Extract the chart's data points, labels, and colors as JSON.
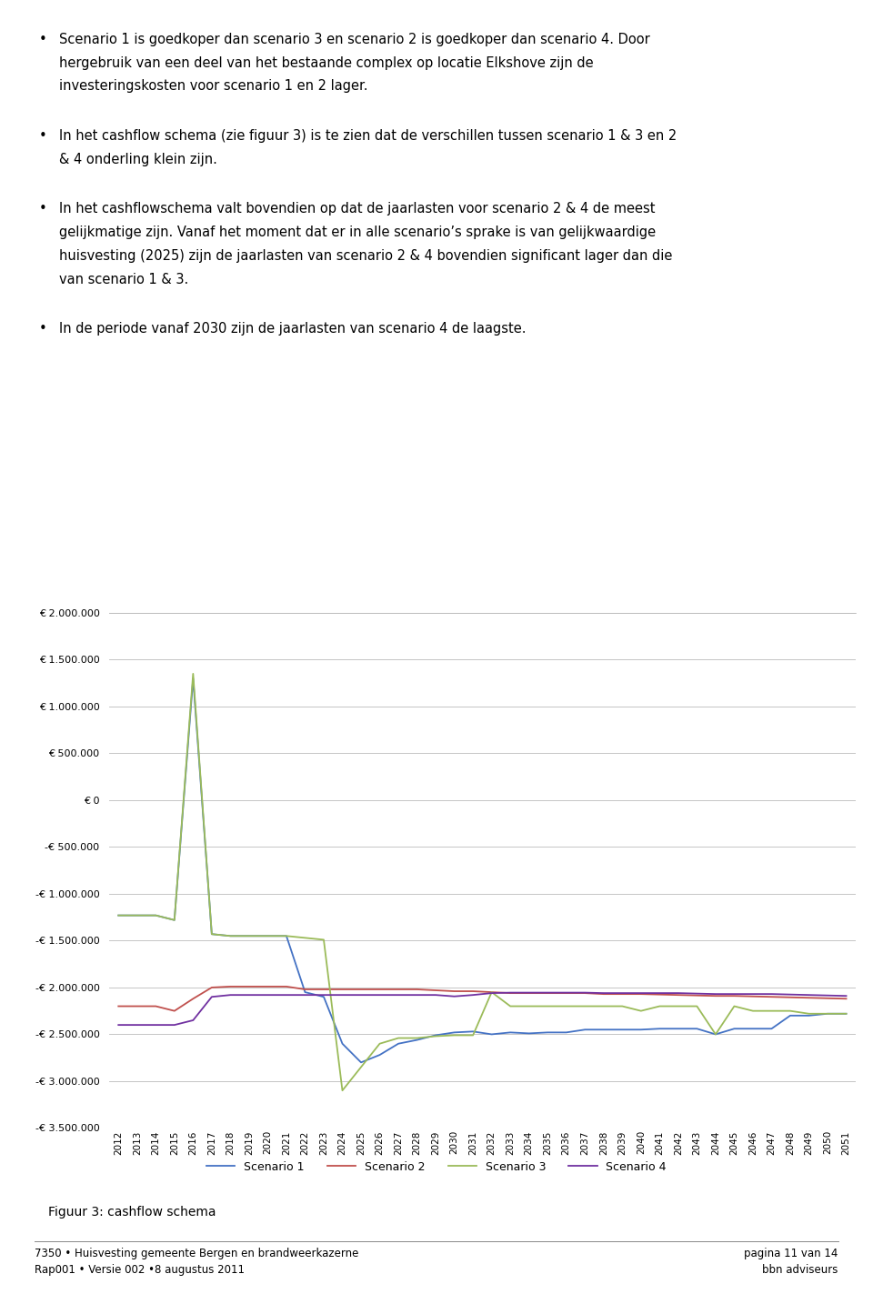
{
  "years": [
    2012,
    2013,
    2014,
    2015,
    2016,
    2017,
    2018,
    2019,
    2020,
    2021,
    2022,
    2023,
    2024,
    2025,
    2026,
    2027,
    2028,
    2029,
    2030,
    2031,
    2032,
    2033,
    2034,
    2035,
    2036,
    2037,
    2038,
    2039,
    2040,
    2041,
    2042,
    2043,
    2044,
    2045,
    2046,
    2047,
    2048,
    2049,
    2050,
    2051
  ],
  "scenario1": [
    -1230000,
    -1230000,
    -1230000,
    -1280000,
    1300000,
    -1430000,
    -1450000,
    -1450000,
    -1450000,
    -1450000,
    -2050000,
    -2100000,
    -2600000,
    -2800000,
    -2720000,
    -2600000,
    -2560000,
    -2510000,
    -2480000,
    -2470000,
    -2500000,
    -2480000,
    -2490000,
    -2480000,
    -2480000,
    -2450000,
    -2450000,
    -2450000,
    -2450000,
    -2440000,
    -2440000,
    -2440000,
    -2500000,
    -2440000,
    -2440000,
    -2440000,
    -2300000,
    -2300000,
    -2280000,
    -2280000
  ],
  "scenario2": [
    -2200000,
    -2200000,
    -2200000,
    -2250000,
    -2120000,
    -2000000,
    -1990000,
    -1990000,
    -1990000,
    -1990000,
    -2020000,
    -2020000,
    -2020000,
    -2020000,
    -2020000,
    -2020000,
    -2020000,
    -2030000,
    -2040000,
    -2040000,
    -2050000,
    -2060000,
    -2060000,
    -2060000,
    -2060000,
    -2060000,
    -2070000,
    -2070000,
    -2070000,
    -2075000,
    -2080000,
    -2085000,
    -2090000,
    -2090000,
    -2095000,
    -2100000,
    -2105000,
    -2110000,
    -2115000,
    -2120000
  ],
  "scenario3": [
    -1230000,
    -1230000,
    -1230000,
    -1280000,
    1350000,
    -1430000,
    -1450000,
    -1450000,
    -1450000,
    -1450000,
    -1470000,
    -1490000,
    -3100000,
    -2850000,
    -2600000,
    -2540000,
    -2540000,
    -2520000,
    -2510000,
    -2510000,
    -2050000,
    -2200000,
    -2200000,
    -2200000,
    -2200000,
    -2200000,
    -2200000,
    -2200000,
    -2250000,
    -2200000,
    -2200000,
    -2200000,
    -2500000,
    -2200000,
    -2250000,
    -2250000,
    -2250000,
    -2280000,
    -2280000,
    -2280000
  ],
  "scenario4": [
    -2400000,
    -2400000,
    -2400000,
    -2400000,
    -2350000,
    -2100000,
    -2080000,
    -2080000,
    -2080000,
    -2080000,
    -2080000,
    -2080000,
    -2080000,
    -2080000,
    -2080000,
    -2080000,
    -2080000,
    -2080000,
    -2095000,
    -2080000,
    -2060000,
    -2055000,
    -2055000,
    -2055000,
    -2055000,
    -2055000,
    -2060000,
    -2060000,
    -2060000,
    -2060000,
    -2060000,
    -2065000,
    -2070000,
    -2070000,
    -2070000,
    -2070000,
    -2075000,
    -2080000,
    -2085000,
    -2090000
  ],
  "scenario1_color": "#4472c4",
  "scenario2_color": "#c0504d",
  "scenario3_color": "#9bbb59",
  "scenario4_color": "#7030a0",
  "ylim_min": -3500000,
  "ylim_max": 2000000,
  "yticks": [
    -3500000,
    -3000000,
    -2500000,
    -2000000,
    -1500000,
    -1000000,
    -500000,
    0,
    500000,
    1000000,
    1500000,
    2000000
  ],
  "text_bullets": [
    "Scenario 1 is goedkoper dan scenario 3 en scenario 2 is goedkoper dan scenario 4. Door hergebruik van een deel van het bestaande complex op locatie Elkshove zijn de investeringskosten voor scenario 1 en 2 lager.",
    "In het cashflow schema (zie figuur 3) is te zien dat de verschillen tussen scenario 1 & 3 en 2 & 4 onderling klein zijn.",
    "In het cashflowschema valt bovendien op dat de jaarlasten voor scenario 2 & 4 de meest gelijkmatige zijn. Vanaf het moment dat er in alle scenario’s sprake is van gelijkwaardige huisvesting (2025) zijn de jaarlasten van scenario 2 & 4 bovendien significant lager dan die van scenario 1 & 3.",
    "In de periode vanaf 2030 zijn de jaarlasten van scenario 4 de laagste."
  ],
  "caption": "Figuur 3: cashflow schema",
  "footer_left": "7350 • Huisvesting gemeente Bergen en brandweerkazerne\nRap001 • Versie 002 •8 augustus 2011",
  "footer_right": "pagina 11 van 14\nbbn adviseurs",
  "grid_color": "#bbbbbb"
}
